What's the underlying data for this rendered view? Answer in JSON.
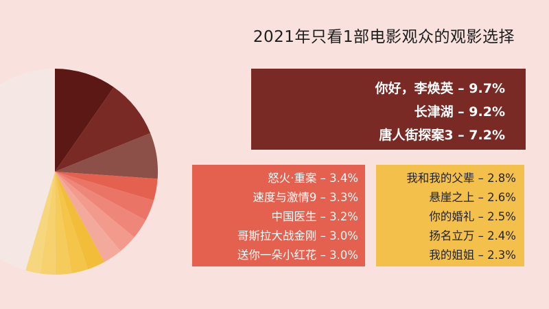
{
  "title": "2021年只看1部电影观众的观影选择",
  "chart_data": {
    "type": "pie",
    "title": "2021年只看1部电影观众的观影选择",
    "unit": "%",
    "slices": [
      {
        "label": "你好，李焕英",
        "value": 9.7,
        "color": "#5c1814"
      },
      {
        "label": "长津湖",
        "value": 9.2,
        "color": "#7a2a24"
      },
      {
        "label": "唐人街探案3",
        "value": 7.2,
        "color": "#8c5048"
      },
      {
        "label": "怒火·重案",
        "value": 3.4,
        "color": "#e5614f"
      },
      {
        "label": "速度与激情9",
        "value": 3.3,
        "color": "#ea7566"
      },
      {
        "label": "中国医生",
        "value": 3.2,
        "color": "#ee8779"
      },
      {
        "label": "哥斯拉大战金刚",
        "value": 3.0,
        "color": "#f29a8c"
      },
      {
        "label": "送你一朵小红花",
        "value": 3.0,
        "color": "#f4a99d"
      },
      {
        "label": "我和我的父辈",
        "value": 2.8,
        "color": "#f2bd38"
      },
      {
        "label": "悬崖之上",
        "value": 2.6,
        "color": "#f4c549"
      },
      {
        "label": "你的婚礼",
        "value": 2.5,
        "color": "#f5cb5c"
      },
      {
        "label": "扬名立万",
        "value": 2.4,
        "color": "#f6d16d"
      },
      {
        "label": "我的姐姐",
        "value": 2.3,
        "color": "#f7d77e"
      },
      {
        "label": "",
        "value": 45.4,
        "color": "#f5e7e3"
      }
    ]
  },
  "legend": {
    "top": [
      "你好，李焕英 – 9.7%",
      "长津湖 – 9.2%",
      "唐人街探案3 – 7.2%"
    ],
    "middle": [
      "怒火·重案 – 3.4%",
      "速度与激情9 – 3.3%",
      "中国医生 – 3.2%",
      "哥斯拉大战金刚 – 3.0%",
      "送你一朵小红花 – 3.0%"
    ],
    "right": [
      "我和我的父辈 – 2.8%",
      "悬崖之上 – 2.6%",
      "你的婚礼 – 2.5%",
      "扬名立万 – 2.4%",
      "我的姐姐 – 2.3%"
    ]
  }
}
